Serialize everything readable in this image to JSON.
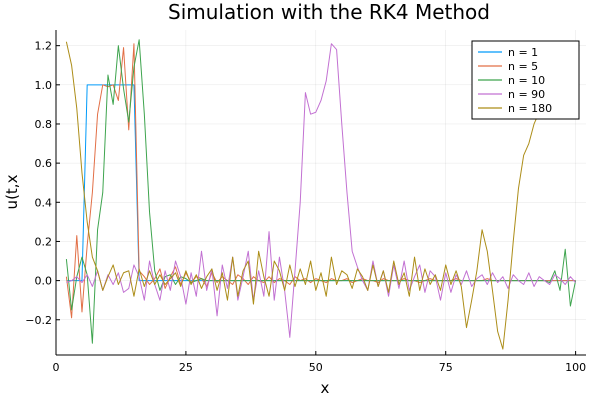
{
  "chart_data": {
    "type": "line",
    "title": "Simulation with the RK4 Method",
    "xlabel": "x",
    "ylabel": "u(t,x",
    "xlim": [
      0,
      102
    ],
    "ylim": [
      -0.38,
      1.28
    ],
    "xticks": [
      0,
      25,
      50,
      75,
      100
    ],
    "yticks": [
      -0.2,
      0.0,
      0.2,
      0.4,
      0.6,
      0.8,
      1.0,
      1.2
    ],
    "xtick_labels": [
      "0",
      "25",
      "50",
      "75",
      "100"
    ],
    "ytick_labels": [
      "−0.2",
      "0.0",
      "0.2",
      "0.4",
      "0.6",
      "0.8",
      "1.0",
      "1.2"
    ],
    "grid": true,
    "legend_position": "top-right",
    "x": [
      2,
      3,
      4,
      5,
      6,
      7,
      8,
      9,
      10,
      11,
      12,
      13,
      14,
      15,
      16,
      17,
      18,
      19,
      20,
      21,
      22,
      23,
      24,
      25,
      26,
      27,
      28,
      29,
      30,
      31,
      32,
      33,
      34,
      35,
      36,
      37,
      38,
      39,
      40,
      41,
      42,
      43,
      44,
      45,
      46,
      47,
      48,
      49,
      50,
      51,
      52,
      53,
      54,
      55,
      56,
      57,
      58,
      59,
      60,
      61,
      62,
      63,
      64,
      65,
      66,
      67,
      68,
      69,
      70,
      71,
      72,
      73,
      74,
      75,
      76,
      77,
      78,
      79,
      80,
      81,
      82,
      83,
      84,
      85,
      86,
      87,
      88,
      89,
      90,
      91,
      92,
      93,
      94,
      95,
      96,
      97,
      98,
      99,
      100
    ],
    "series": [
      {
        "name": "n = 1",
        "color": "#009af9",
        "values": [
          0,
          0,
          0,
          0,
          1,
          1,
          1,
          1,
          1,
          1,
          1,
          1,
          1,
          1,
          0,
          0,
          0,
          0,
          0,
          0,
          0,
          0,
          0,
          0,
          0,
          0,
          0,
          0,
          0,
          0,
          0,
          0,
          0,
          0,
          0,
          0,
          0,
          0,
          0,
          0,
          0,
          0,
          0,
          0,
          0,
          0,
          0,
          0,
          0,
          0,
          0,
          0,
          0,
          0,
          0,
          0,
          0,
          0,
          0,
          0,
          0,
          0,
          0,
          0,
          0,
          0,
          0,
          0,
          0,
          0,
          0,
          0,
          0,
          0,
          0,
          0,
          0,
          0,
          0,
          0,
          0,
          0,
          0,
          0,
          0,
          0,
          0,
          0,
          0,
          0,
          0,
          0,
          0,
          0,
          0,
          0,
          0,
          0,
          0
        ]
      },
      {
        "name": "n = 5",
        "color": "#e26f46",
        "values": [
          0.02,
          -0.19,
          0.23,
          -0.16,
          0.18,
          0.45,
          0.85,
          1.0,
          0.99,
          1.0,
          0.92,
          1.19,
          0.77,
          1.21,
          0.05,
          0.02,
          -0.02,
          0.01,
          0.06,
          -0.04,
          0.02,
          0.07,
          -0.02,
          0.04,
          -0.01,
          0.02,
          0.01,
          -0.03,
          0.04,
          -0.01,
          0.02,
          0.0,
          -0.02,
          0.03,
          0.01,
          -0.02,
          0.02,
          0.0,
          -0.01,
          0.02,
          -0.01,
          0.01,
          0.0,
          -0.02,
          0.02,
          0.0,
          0.01,
          -0.01,
          0.01,
          0.0,
          -0.01,
          0.01,
          0.0,
          0.0,
          0.01,
          -0.01,
          0.0,
          0.01,
          0.0,
          0.0,
          -0.01,
          0.01,
          0.0,
          0.0,
          0.0,
          0.01,
          0.0,
          0.0,
          -0.01,
          0.0,
          0.01,
          0.0,
          0.0,
          0.0,
          0.0,
          0.01,
          0.0,
          0.0,
          0.0,
          0.0,
          0.0,
          0.01,
          0.0,
          0.0,
          0.0,
          0.0,
          0.0,
          0.0,
          0.0,
          0.0,
          0.0,
          0.0,
          0.0,
          0.0,
          0.0,
          0.0,
          0.0,
          0.0,
          0.0
        ]
      },
      {
        "name": "n = 10",
        "color": "#3ea44e",
        "values": [
          0.11,
          -0.15,
          0.02,
          0.12,
          0.03,
          -0.32,
          0.26,
          0.45,
          1.05,
          0.9,
          1.2,
          0.98,
          0.81,
          1.09,
          1.23,
          0.85,
          0.35,
          0.05,
          -0.05,
          0.02,
          0.03,
          -0.02,
          0.02,
          0.01,
          -0.01,
          0.0,
          0.01,
          0.0,
          0.0,
          0.0,
          0.0,
          0.0,
          0.0,
          0.0,
          0.0,
          0.0,
          0.0,
          0.0,
          0.0,
          0.0,
          0.0,
          0.0,
          0.0,
          0.0,
          0.0,
          0.0,
          0.0,
          0.0,
          0.0,
          0.0,
          0.0,
          0.0,
          0.0,
          0.0,
          0.0,
          0.0,
          0.0,
          0.0,
          0.0,
          0.0,
          0.0,
          0.0,
          0.0,
          0.0,
          0.0,
          0.0,
          0.0,
          0.0,
          0.0,
          0.0,
          0.0,
          0.0,
          0.0,
          0.0,
          0.0,
          0.0,
          0.0,
          0.0,
          0.0,
          0.0,
          0.0,
          0.0,
          0.0,
          0.0,
          0.0,
          0.0,
          0.0,
          0.0,
          0.0,
          0.0,
          0.0,
          0.0,
          0.0,
          -0.01,
          0.05,
          -0.05,
          0.16,
          -0.13,
          0.0
        ]
      },
      {
        "name": "n = 90",
        "color": "#c271d2",
        "values": [
          -0.01,
          0.0,
          0.02,
          -0.01,
          0.03,
          -0.03,
          0.05,
          -0.05,
          0.03,
          -0.02,
          0.04,
          -0.06,
          -0.04,
          0.08,
          0.02,
          -0.1,
          0.1,
          -0.02,
          -0.1,
          0.05,
          -0.05,
          0.1,
          0.02,
          -0.12,
          0.04,
          -0.08,
          0.15,
          -0.05,
          0.06,
          -0.18,
          0.08,
          -0.04,
          0.12,
          -0.1,
          0.02,
          0.15,
          -0.1,
          0.05,
          -0.08,
          0.25,
          -0.1,
          0.12,
          -0.05,
          -0.29,
          0.05,
          0.4,
          0.96,
          0.85,
          0.86,
          0.92,
          1.02,
          1.21,
          1.18,
          0.8,
          0.45,
          0.15,
          0.07,
          0.0,
          -0.05,
          0.1,
          -0.03,
          0.05,
          -0.08,
          0.08,
          -0.04,
          0.1,
          -0.05,
          0.02,
          0.08,
          -0.06,
          0.05,
          0.02,
          -0.1,
          0.04,
          -0.06,
          0.03,
          -0.02,
          0.05,
          -0.03,
          0.01,
          0.03,
          -0.02,
          0.04,
          -0.01,
          0.02,
          -0.04,
          0.03,
          0.0,
          -0.02,
          0.04,
          -0.03,
          0.02,
          0.0,
          -0.02,
          0.03,
          0.01,
          -0.02,
          0.02,
          -0.01
        ]
      },
      {
        "name": "n = 180",
        "color": "#ac8d18",
        "values": [
          1.22,
          1.1,
          0.88,
          0.55,
          0.3,
          0.12,
          0.05,
          -0.05,
          0.02,
          0.08,
          -0.02,
          0.04,
          0.05,
          -0.08,
          0.06,
          -0.03,
          0.05,
          -0.02,
          0.03,
          -0.02,
          0.01,
          0.04,
          -0.03,
          0.05,
          -0.02,
          0.03,
          -0.04,
          0.02,
          0.06,
          -0.05,
          0.04,
          -0.1,
          0.12,
          -0.08,
          0.05,
          0.1,
          -0.12,
          0.15,
          0.02,
          -0.08,
          0.1,
          0.05,
          -0.05,
          0.08,
          -0.03,
          0.06,
          -0.02,
          0.1,
          -0.05,
          0.04,
          -0.08,
          0.12,
          -0.02,
          0.05,
          0.03,
          -0.04,
          0.06,
          0.02,
          -0.05,
          0.08,
          -0.03,
          0.05,
          -0.06,
          0.1,
          -0.02,
          0.04,
          -0.08,
          0.12,
          -0.05,
          0.06,
          -0.02,
          0.03,
          -0.05,
          0.08,
          -0.02,
          0.05,
          -0.03,
          -0.24,
          -0.1,
          0.05,
          0.26,
          0.15,
          -0.05,
          -0.26,
          -0.35,
          -0.1,
          0.2,
          0.47,
          0.64,
          0.7,
          0.8,
          0.86,
          0.96,
          1.09,
          1.18,
          1.16,
          1.19,
          1.2,
          1.18
        ]
      }
    ]
  }
}
